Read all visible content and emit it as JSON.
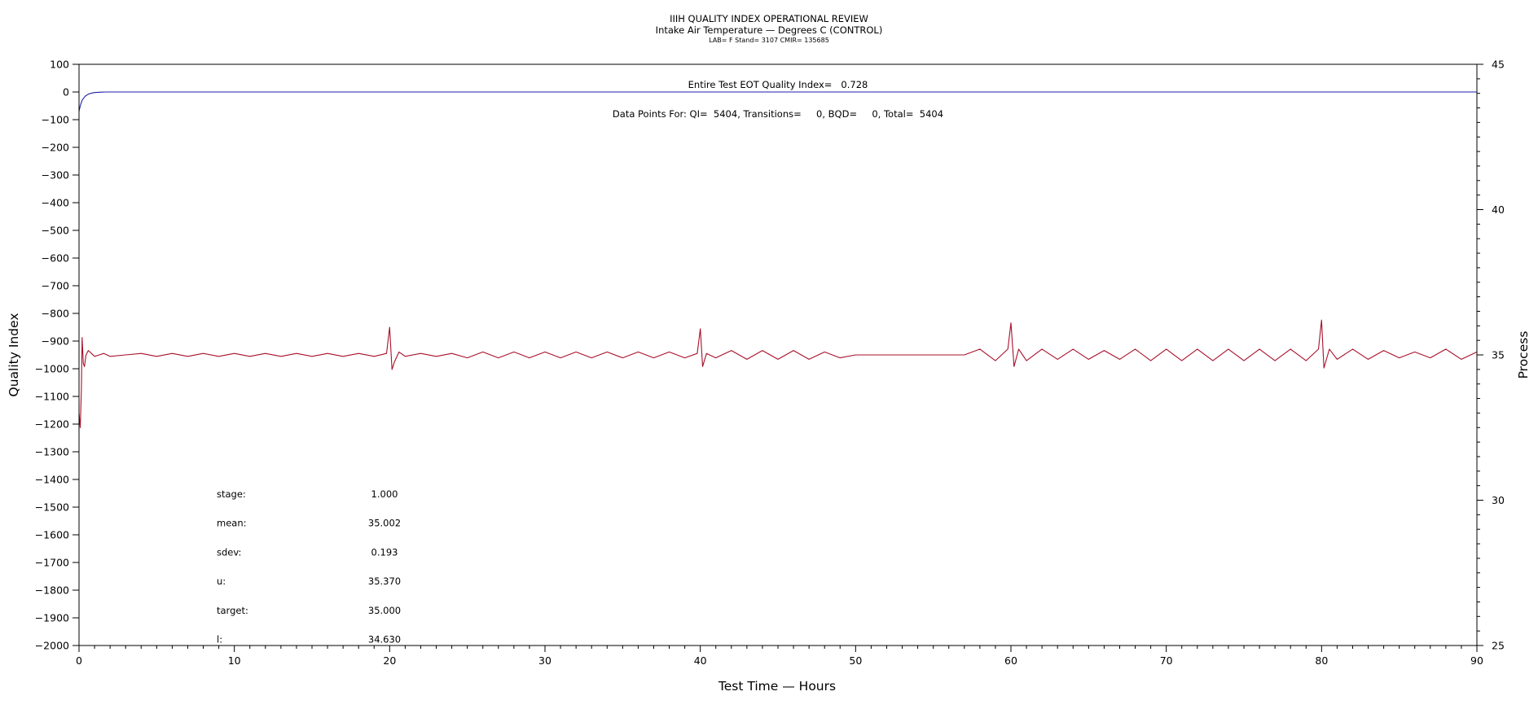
{
  "chart_data": {
    "type": "line",
    "title": "IIIH QUALITY INDEX OPERATIONAL REVIEW",
    "subtitle": "Intake Air Temperature — Degrees C (CONTROL)",
    "subtitle2": "LAB= F Stand= 3107 CMIR= 135685",
    "xlabel": "Test Time — Hours",
    "ylabel": "Quality Index",
    "y2label": "Process",
    "xlim": [
      0,
      90
    ],
    "ylim": [
      -2000,
      100
    ],
    "y2lim": [
      25,
      45
    ],
    "xticks": [
      0,
      10,
      20,
      30,
      40,
      50,
      60,
      70,
      80,
      90
    ],
    "yticks": [
      100,
      0,
      -100,
      -200,
      -300,
      -400,
      -500,
      -600,
      -700,
      -800,
      -900,
      -1000,
      -1100,
      -1200,
      -1300,
      -1400,
      -1500,
      -1600,
      -1700,
      -1800,
      -1900,
      -2000
    ],
    "y2ticks": [
      45,
      40,
      35,
      30,
      25
    ],
    "annotations": [
      "Entire Test EOT Quality Index=   0.728",
      "Data Points For: QI=  5404, Transitions=     0, BQD=     0, Total=  5404"
    ],
    "series": [
      {
        "color": "#1f1fa8",
        "axis": "left",
        "points": [
          [
            0,
            -70
          ],
          [
            0.08,
            -50
          ],
          [
            0.2,
            -30
          ],
          [
            0.4,
            -15
          ],
          [
            0.6,
            -8
          ],
          [
            0.8,
            -4
          ],
          [
            1.0,
            -2
          ],
          [
            1.3,
            -1
          ],
          [
            1.8,
            0
          ],
          [
            90,
            0
          ]
        ]
      },
      {
        "color": "#a8102a",
        "axis": "right",
        "points": [
          [
            0,
            33.0
          ],
          [
            0.08,
            32.5
          ],
          [
            0.15,
            33.8
          ],
          [
            0.2,
            35.6
          ],
          [
            0.28,
            34.7
          ],
          [
            0.35,
            34.6
          ],
          [
            0.45,
            35.0
          ],
          [
            0.6,
            35.15
          ],
          [
            0.8,
            35.05
          ],
          [
            1.0,
            34.95
          ],
          [
            1.3,
            35.0
          ],
          [
            1.6,
            35.05
          ],
          [
            2.0,
            34.95
          ],
          [
            3,
            35.0
          ],
          [
            4,
            35.05
          ],
          [
            5,
            34.95
          ],
          [
            6,
            35.05
          ],
          [
            7,
            34.95
          ],
          [
            8,
            35.05
          ],
          [
            9,
            34.95
          ],
          [
            10,
            35.05
          ],
          [
            11,
            34.95
          ],
          [
            12,
            35.05
          ],
          [
            13,
            34.95
          ],
          [
            14,
            35.05
          ],
          [
            15,
            34.95
          ],
          [
            16,
            35.05
          ],
          [
            17,
            34.95
          ],
          [
            18,
            35.05
          ],
          [
            19,
            34.95
          ],
          [
            19.8,
            35.05
          ],
          [
            20.0,
            35.95
          ],
          [
            20.15,
            34.5
          ],
          [
            20.3,
            34.75
          ],
          [
            20.6,
            35.1
          ],
          [
            21,
            34.95
          ],
          [
            22,
            35.05
          ],
          [
            23,
            34.95
          ],
          [
            24,
            35.05
          ],
          [
            25,
            34.9
          ],
          [
            26,
            35.1
          ],
          [
            27,
            34.9
          ],
          [
            28,
            35.1
          ],
          [
            29,
            34.9
          ],
          [
            30,
            35.1
          ],
          [
            31,
            34.9
          ],
          [
            32,
            35.1
          ],
          [
            33,
            34.9
          ],
          [
            34,
            35.1
          ],
          [
            35,
            34.9
          ],
          [
            36,
            35.1
          ],
          [
            37,
            34.9
          ],
          [
            38,
            35.1
          ],
          [
            39,
            34.9
          ],
          [
            39.8,
            35.05
          ],
          [
            40.0,
            35.9
          ],
          [
            40.15,
            34.6
          ],
          [
            40.4,
            35.05
          ],
          [
            41,
            34.9
          ],
          [
            42,
            35.15
          ],
          [
            43,
            34.85
          ],
          [
            44,
            35.15
          ],
          [
            45,
            34.85
          ],
          [
            46,
            35.15
          ],
          [
            47,
            34.85
          ],
          [
            48,
            35.1
          ],
          [
            49,
            34.9
          ],
          [
            50,
            35.0
          ],
          [
            51,
            35.0
          ],
          [
            52,
            35.0
          ],
          [
            53,
            35.0
          ],
          [
            54,
            35.0
          ],
          [
            55,
            35.0
          ],
          [
            56,
            35.0
          ],
          [
            57,
            35.0
          ],
          [
            58,
            35.2
          ],
          [
            59,
            34.8
          ],
          [
            59.8,
            35.2
          ],
          [
            60.0,
            36.1
          ],
          [
            60.2,
            34.6
          ],
          [
            60.5,
            35.2
          ],
          [
            61,
            34.8
          ],
          [
            62,
            35.2
          ],
          [
            63,
            34.85
          ],
          [
            64,
            35.2
          ],
          [
            65,
            34.85
          ],
          [
            66,
            35.15
          ],
          [
            67,
            34.85
          ],
          [
            68,
            35.2
          ],
          [
            69,
            34.8
          ],
          [
            70,
            35.2
          ],
          [
            71,
            34.8
          ],
          [
            72,
            35.2
          ],
          [
            73,
            34.8
          ],
          [
            74,
            35.2
          ],
          [
            75,
            34.8
          ],
          [
            76,
            35.2
          ],
          [
            77,
            34.8
          ],
          [
            78,
            35.2
          ],
          [
            79,
            34.8
          ],
          [
            79.8,
            35.2
          ],
          [
            80.0,
            36.2
          ],
          [
            80.15,
            34.55
          ],
          [
            80.5,
            35.2
          ],
          [
            81,
            34.85
          ],
          [
            82,
            35.2
          ],
          [
            83,
            34.85
          ],
          [
            84,
            35.15
          ],
          [
            85,
            34.9
          ],
          [
            86,
            35.1
          ],
          [
            87,
            34.9
          ],
          [
            88,
            35.2
          ],
          [
            89,
            34.85
          ],
          [
            90,
            35.1
          ]
        ]
      }
    ],
    "stats": [
      {
        "label": "stage:",
        "value": "1.000"
      },
      {
        "label": "mean:",
        "value": "35.002"
      },
      {
        "label": "sdev:",
        "value": "0.193"
      },
      {
        "label": "u:",
        "value": "35.370"
      },
      {
        "label": "target:",
        "value": "35.000"
      },
      {
        "label": "l:",
        "value": "34.630"
      }
    ]
  }
}
